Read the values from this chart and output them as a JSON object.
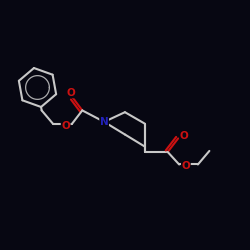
{
  "bg_color": "#070712",
  "bond_color": "#c8c8c8",
  "o_color": "#cc1111",
  "n_color": "#2222bb",
  "lw": 1.5,
  "fs": 7.5,
  "figsize": [
    2.5,
    2.5
  ],
  "dpi": 100,
  "xlim": [
    -1,
    11
  ],
  "ylim": [
    -1,
    11
  ]
}
